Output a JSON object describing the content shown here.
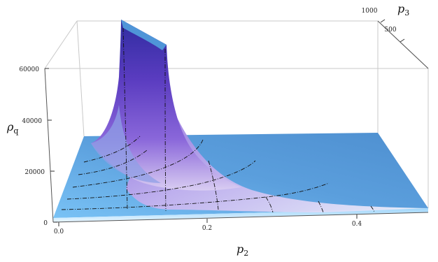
{
  "chart_data": {
    "type": "surface3d",
    "title": "",
    "axes": {
      "x": {
        "label": "p",
        "subscript": "2",
        "range": [
          0,
          0.5
        ],
        "ticks": [
          "0.0",
          "0.2",
          "0.4"
        ]
      },
      "y": {
        "label": "p",
        "subscript": "3",
        "range": [
          0,
          1000
        ],
        "ticks": [
          "500",
          "1000"
        ]
      },
      "z": {
        "label": "ρ",
        "subscript": "q",
        "range": [
          0,
          60000
        ],
        "ticks": [
          "0",
          "20000",
          "40000",
          "60000"
        ]
      }
    },
    "surface_relation": "rho_q approximately proportional to p3 / p2^2 (steep ridge near small p2, flat plateau elsewhere)",
    "colors": {
      "plateau": "#5b9bd5",
      "ridge_top": "#4a2fb0",
      "ridge_mid": "#7b55d6",
      "mesh": "#111111"
    },
    "grid": false,
    "legend": "none"
  }
}
